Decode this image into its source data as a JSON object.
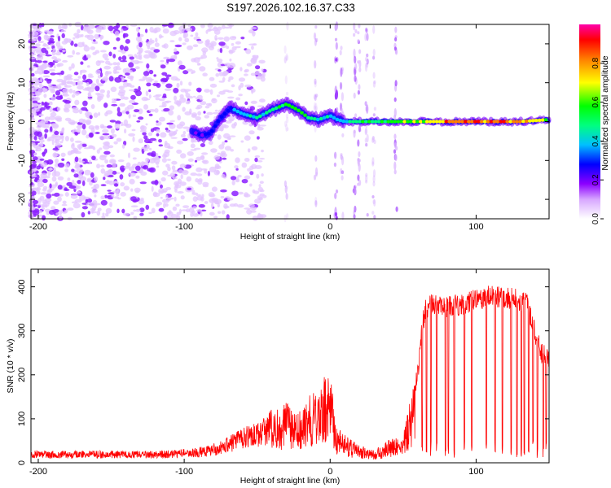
{
  "title": "S197.2026.102.16.37.C33",
  "chart_data": [
    {
      "type": "heatmap",
      "name": "spectrogram",
      "xlabel": "Height of straight line (km)",
      "ylabel": "Frequency (Hz)",
      "xlim": [
        -205,
        150
      ],
      "ylim": [
        -25,
        25
      ],
      "xticks": [
        -200,
        -100,
        0,
        100
      ],
      "xtick_labels": [
        "-200",
        "-100",
        "0",
        "100"
      ],
      "yticks": [
        -20,
        -10,
        0,
        10,
        20
      ],
      "ytick_labels": [
        "-20",
        "-10",
        "0",
        "10",
        "20"
      ],
      "ridge": {
        "x": [
          -95,
          -88,
          -82,
          -75,
          -68,
          -60,
          -50,
          -40,
          -30,
          -22,
          -15,
          -8,
          0,
          5,
          10,
          20,
          40,
          70,
          100,
          130,
          150
        ],
        "y": [
          -2.5,
          -3.5,
          -3.0,
          1.0,
          3.5,
          2.0,
          1.0,
          3.0,
          4.5,
          3.0,
          1.0,
          0.5,
          1.5,
          0.5,
          0,
          0,
          0,
          0,
          0,
          0,
          0.5
        ],
        "amplitude": [
          0.25,
          0.3,
          0.35,
          0.3,
          0.38,
          0.45,
          0.5,
          0.55,
          0.65,
          0.7,
          0.6,
          0.55,
          0.5,
          0.45,
          0.5,
          0.55,
          0.6,
          0.85,
          0.95,
          0.9,
          0.75
        ]
      },
      "colorbar": {
        "label": "Normalized spectral amplitude",
        "range": [
          0,
          1
        ],
        "ticks": [
          0.0,
          0.2,
          0.4,
          0.6,
          0.8
        ],
        "tick_labels": [
          "0.0",
          "0.2",
          "0.4",
          "0.6",
          "0.8"
        ],
        "colors": [
          "#ffffff",
          "#8c00ff",
          "#0000ff",
          "#00bfff",
          "#00ff00",
          "#c8ff00",
          "#ffff00",
          "#ff8000",
          "#ff0000",
          "#ff00aa"
        ]
      }
    },
    {
      "type": "line",
      "name": "snr",
      "xlabel": "Height of straight line (km)",
      "ylabel": "SNR (10 * v/v)",
      "xlim": [
        -205,
        150
      ],
      "ylim": [
        0,
        440
      ],
      "xticks": [
        -200,
        -100,
        0,
        100
      ],
      "xtick_labels": [
        "-200",
        "-100",
        "0",
        "100"
      ],
      "yticks": [
        0,
        100,
        200,
        300,
        400
      ],
      "ytick_labels": [
        "0",
        "100",
        "200",
        "300",
        "400"
      ],
      "line_color": "#ff0000",
      "envelope": {
        "x": [
          -205,
          -120,
          -100,
          -85,
          -75,
          -65,
          -55,
          -45,
          -35,
          -30,
          -25,
          -20,
          -15,
          -10,
          -5,
          0,
          3,
          5,
          10,
          15,
          20,
          25,
          30,
          35,
          40,
          45,
          50,
          55,
          58,
          60,
          62,
          65,
          70,
          80,
          90,
          100,
          110,
          120,
          130,
          135,
          140,
          145,
          150
        ],
        "y": [
          22,
          22,
          25,
          30,
          40,
          55,
          70,
          85,
          110,
          120,
          100,
          110,
          130,
          150,
          175,
          185,
          110,
          70,
          55,
          45,
          40,
          30,
          25,
          35,
          45,
          50,
          55,
          130,
          170,
          200,
          280,
          350,
          360,
          355,
          360,
          370,
          380,
          375,
          370,
          360,
          300,
          250,
          240
        ]
      },
      "dropouts_x": [
        63,
        66,
        69,
        73,
        79,
        81,
        85,
        92,
        97,
        107,
        113,
        118,
        124,
        128,
        131,
        133,
        136,
        139,
        142,
        146,
        148
      ]
    }
  ]
}
